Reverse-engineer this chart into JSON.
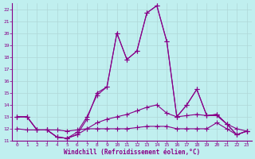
{
  "xlabel": "Windchill (Refroidissement éolien,°C)",
  "x": [
    0,
    1,
    2,
    3,
    4,
    5,
    6,
    7,
    8,
    9,
    10,
    11,
    12,
    13,
    14,
    15,
    16,
    17,
    18,
    19,
    20,
    21,
    22,
    23
  ],
  "line1": [
    13.0,
    13.0,
    11.9,
    11.9,
    11.3,
    11.2,
    11.7,
    13.0,
    14.8,
    15.5,
    20.0,
    17.8,
    18.5,
    21.7,
    22.3,
    19.3,
    13.0,
    14.0,
    15.3,
    13.1,
    13.2,
    12.4,
    11.5,
    11.8
  ],
  "line2": [
    13.0,
    13.0,
    11.9,
    11.9,
    11.3,
    11.2,
    11.5,
    12.8,
    15.0,
    15.5,
    20.0,
    17.8,
    18.5,
    21.7,
    22.3,
    19.3,
    13.0,
    14.0,
    15.3,
    13.1,
    13.2,
    12.4,
    11.5,
    11.8
  ],
  "line3": [
    13.0,
    13.0,
    11.9,
    11.9,
    11.3,
    11.2,
    11.5,
    12.0,
    12.5,
    12.8,
    13.0,
    13.2,
    13.5,
    13.8,
    14.0,
    13.3,
    13.0,
    13.1,
    13.2,
    13.1,
    13.1,
    12.4,
    12.0,
    11.8
  ],
  "line4": [
    12.0,
    11.9,
    11.9,
    11.9,
    11.9,
    11.8,
    11.9,
    12.0,
    12.0,
    12.0,
    12.0,
    12.0,
    12.1,
    12.2,
    12.2,
    12.2,
    12.0,
    12.0,
    12.0,
    12.0,
    12.5,
    12.0,
    11.5,
    11.8
  ],
  "color": "#880088",
  "bg_color": "#c0efef",
  "grid_color": "#b0d8d8",
  "ylim_min": 11,
  "ylim_max": 22.5,
  "xlim_min": -0.5,
  "xlim_max": 23.5,
  "yticks": [
    11,
    12,
    13,
    14,
    15,
    16,
    17,
    18,
    19,
    20,
    21,
    22
  ],
  "xticks": [
    0,
    1,
    2,
    3,
    4,
    5,
    6,
    7,
    8,
    9,
    10,
    11,
    12,
    13,
    14,
    15,
    16,
    17,
    18,
    19,
    20,
    21,
    22,
    23
  ],
  "tick_fontsize": 4.5,
  "xlabel_fontsize": 5.5,
  "linewidth": 0.8,
  "markersize": 2.0
}
